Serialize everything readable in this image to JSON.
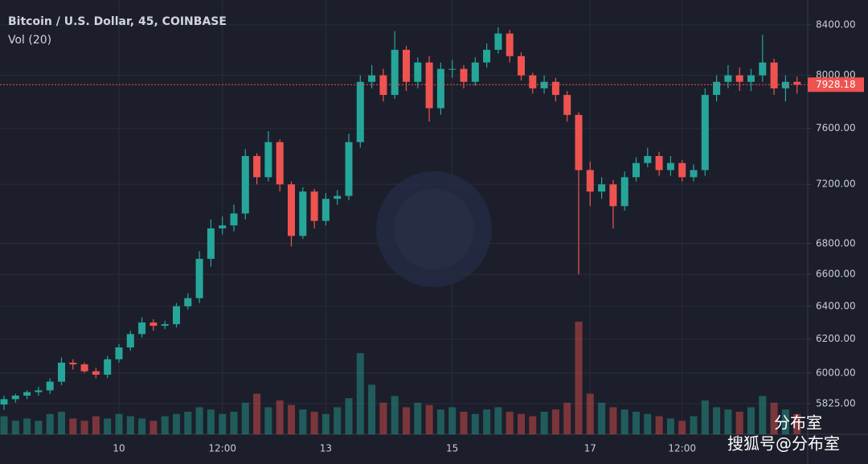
{
  "chart_data": {
    "type": "candlestick",
    "title": "Bitcoin / U.S. Dollar, 45, COINBASE",
    "subtitle": "Vol (20)",
    "categories": [
      null,
      null,
      null,
      null,
      null,
      null,
      null,
      null,
      null,
      null,
      "10",
      null,
      null,
      null,
      null,
      null,
      null,
      null,
      null,
      "12:00",
      null,
      null,
      null,
      null,
      null,
      null,
      null,
      null,
      "13",
      null,
      null,
      null,
      null,
      null,
      null,
      null,
      null,
      null,
      null,
      "15",
      null,
      null,
      null,
      null,
      null,
      null,
      null,
      null,
      null,
      null,
      null,
      "17",
      null,
      null,
      null,
      null,
      null,
      null,
      null,
      "12:00",
      null,
      null,
      null,
      null,
      null,
      null,
      null,
      null,
      null,
      null
    ],
    "open": [
      5820,
      5850,
      5870,
      5890,
      5900,
      5950,
      6060,
      6050,
      6010,
      5990,
      6080,
      6150,
      6230,
      6300,
      6280,
      6290,
      6400,
      6450,
      6700,
      6900,
      6920,
      7000,
      7400,
      7250,
      7500,
      7200,
      6850,
      7150,
      6950,
      7100,
      7120,
      7500,
      7950,
      8000,
      7850,
      8200,
      7950,
      8100,
      7750,
      8050,
      8050,
      7950,
      8100,
      8200,
      8330,
      8150,
      8000,
      7900,
      7950,
      7850,
      7700,
      7300,
      7150,
      7200,
      7050,
      7250,
      7350,
      7400,
      7300,
      7350,
      7250,
      7300,
      7850,
      7950,
      8000,
      7950,
      8000,
      8100,
      7900,
      7950
    ],
    "high": [
      5870,
      5880,
      5900,
      5920,
      5970,
      6090,
      6080,
      6060,
      6030,
      6100,
      6170,
      6250,
      6330,
      6320,
      6310,
      6420,
      6480,
      6750,
      6960,
      6980,
      7060,
      7450,
      7420,
      7580,
      7520,
      7220,
      7180,
      7170,
      7140,
      7160,
      7560,
      8000,
      8080,
      8050,
      8350,
      8230,
      8140,
      8150,
      8100,
      8120,
      8080,
      8140,
      8250,
      8380,
      8360,
      8180,
      8020,
      8000,
      7980,
      7880,
      7720,
      7360,
      7250,
      7230,
      7290,
      7390,
      7460,
      7430,
      7400,
      7370,
      7340,
      7900,
      8000,
      8080,
      8060,
      8050,
      8320,
      8130,
      8000,
      7990
    ],
    "low": [
      5790,
      5830,
      5850,
      5870,
      5880,
      5930,
      6020,
      6000,
      5970,
      5970,
      6060,
      6130,
      6210,
      6250,
      6260,
      6270,
      6380,
      6420,
      6650,
      6860,
      6880,
      6960,
      7200,
      7220,
      7150,
      6780,
      6830,
      6900,
      6920,
      7060,
      7090,
      7460,
      7900,
      7800,
      7820,
      7880,
      7900,
      7650,
      7700,
      7980,
      7900,
      7920,
      8060,
      8170,
      8100,
      7960,
      7860,
      7860,
      7800,
      7650,
      6600,
      7050,
      7100,
      6900,
      7020,
      7220,
      7320,
      7260,
      7260,
      7220,
      7220,
      7260,
      7800,
      7900,
      7880,
      7880,
      7950,
      7850,
      7800,
      7860
    ],
    "close": [
      5850,
      5870,
      5890,
      5900,
      5950,
      6060,
      6050,
      6010,
      5990,
      6080,
      6150,
      6230,
      6300,
      6280,
      6290,
      6400,
      6450,
      6700,
      6900,
      6920,
      7000,
      7400,
      7250,
      7500,
      7200,
      6850,
      7150,
      6950,
      7100,
      7120,
      7500,
      7950,
      8000,
      7850,
      8200,
      7950,
      8100,
      7750,
      8050,
      8050,
      7950,
      8100,
      8200,
      8330,
      8150,
      8000,
      7900,
      7950,
      7850,
      7700,
      7300,
      7150,
      7200,
      7050,
      7250,
      7350,
      7400,
      7300,
      7350,
      7250,
      7300,
      7850,
      7950,
      8000,
      7950,
      8000,
      8100,
      7900,
      7950,
      7928.18
    ],
    "volume": [
      40,
      30,
      35,
      30,
      45,
      50,
      35,
      30,
      40,
      35,
      45,
      40,
      35,
      30,
      40,
      45,
      50,
      60,
      55,
      45,
      50,
      70,
      90,
      60,
      75,
      65,
      55,
      50,
      45,
      60,
      80,
      180,
      110,
      70,
      85,
      60,
      70,
      65,
      55,
      60,
      50,
      45,
      55,
      60,
      50,
      45,
      40,
      50,
      55,
      70,
      250,
      90,
      70,
      60,
      55,
      50,
      45,
      40,
      35,
      30,
      40,
      75,
      60,
      55,
      50,
      60,
      85,
      70,
      55,
      45
    ],
    "up_color": "#26a69a",
    "down_color": "#ef5350",
    "ylim": [
      5655,
      8571
    ],
    "log_scale": true,
    "grid": true,
    "yticks": [
      {
        "value": 8400,
        "label": "8400.00"
      },
      {
        "value": 8000,
        "label": "8000.00"
      },
      {
        "value": 7600,
        "label": "7600.00"
      },
      {
        "value": 7200,
        "label": "7200.00"
      },
      {
        "value": 6800,
        "label": "6800.00"
      },
      {
        "value": 6600,
        "label": "6600.00"
      },
      {
        "value": 6400,
        "label": "6400.00"
      },
      {
        "value": 6200,
        "label": "6200.00"
      },
      {
        "value": 6000,
        "label": "6000.00"
      },
      {
        "value": 5825,
        "label": "5825.00"
      }
    ],
    "last_price": 7928.18,
    "watermark": [
      "分布室",
      "搜狐号@分布室"
    ]
  }
}
